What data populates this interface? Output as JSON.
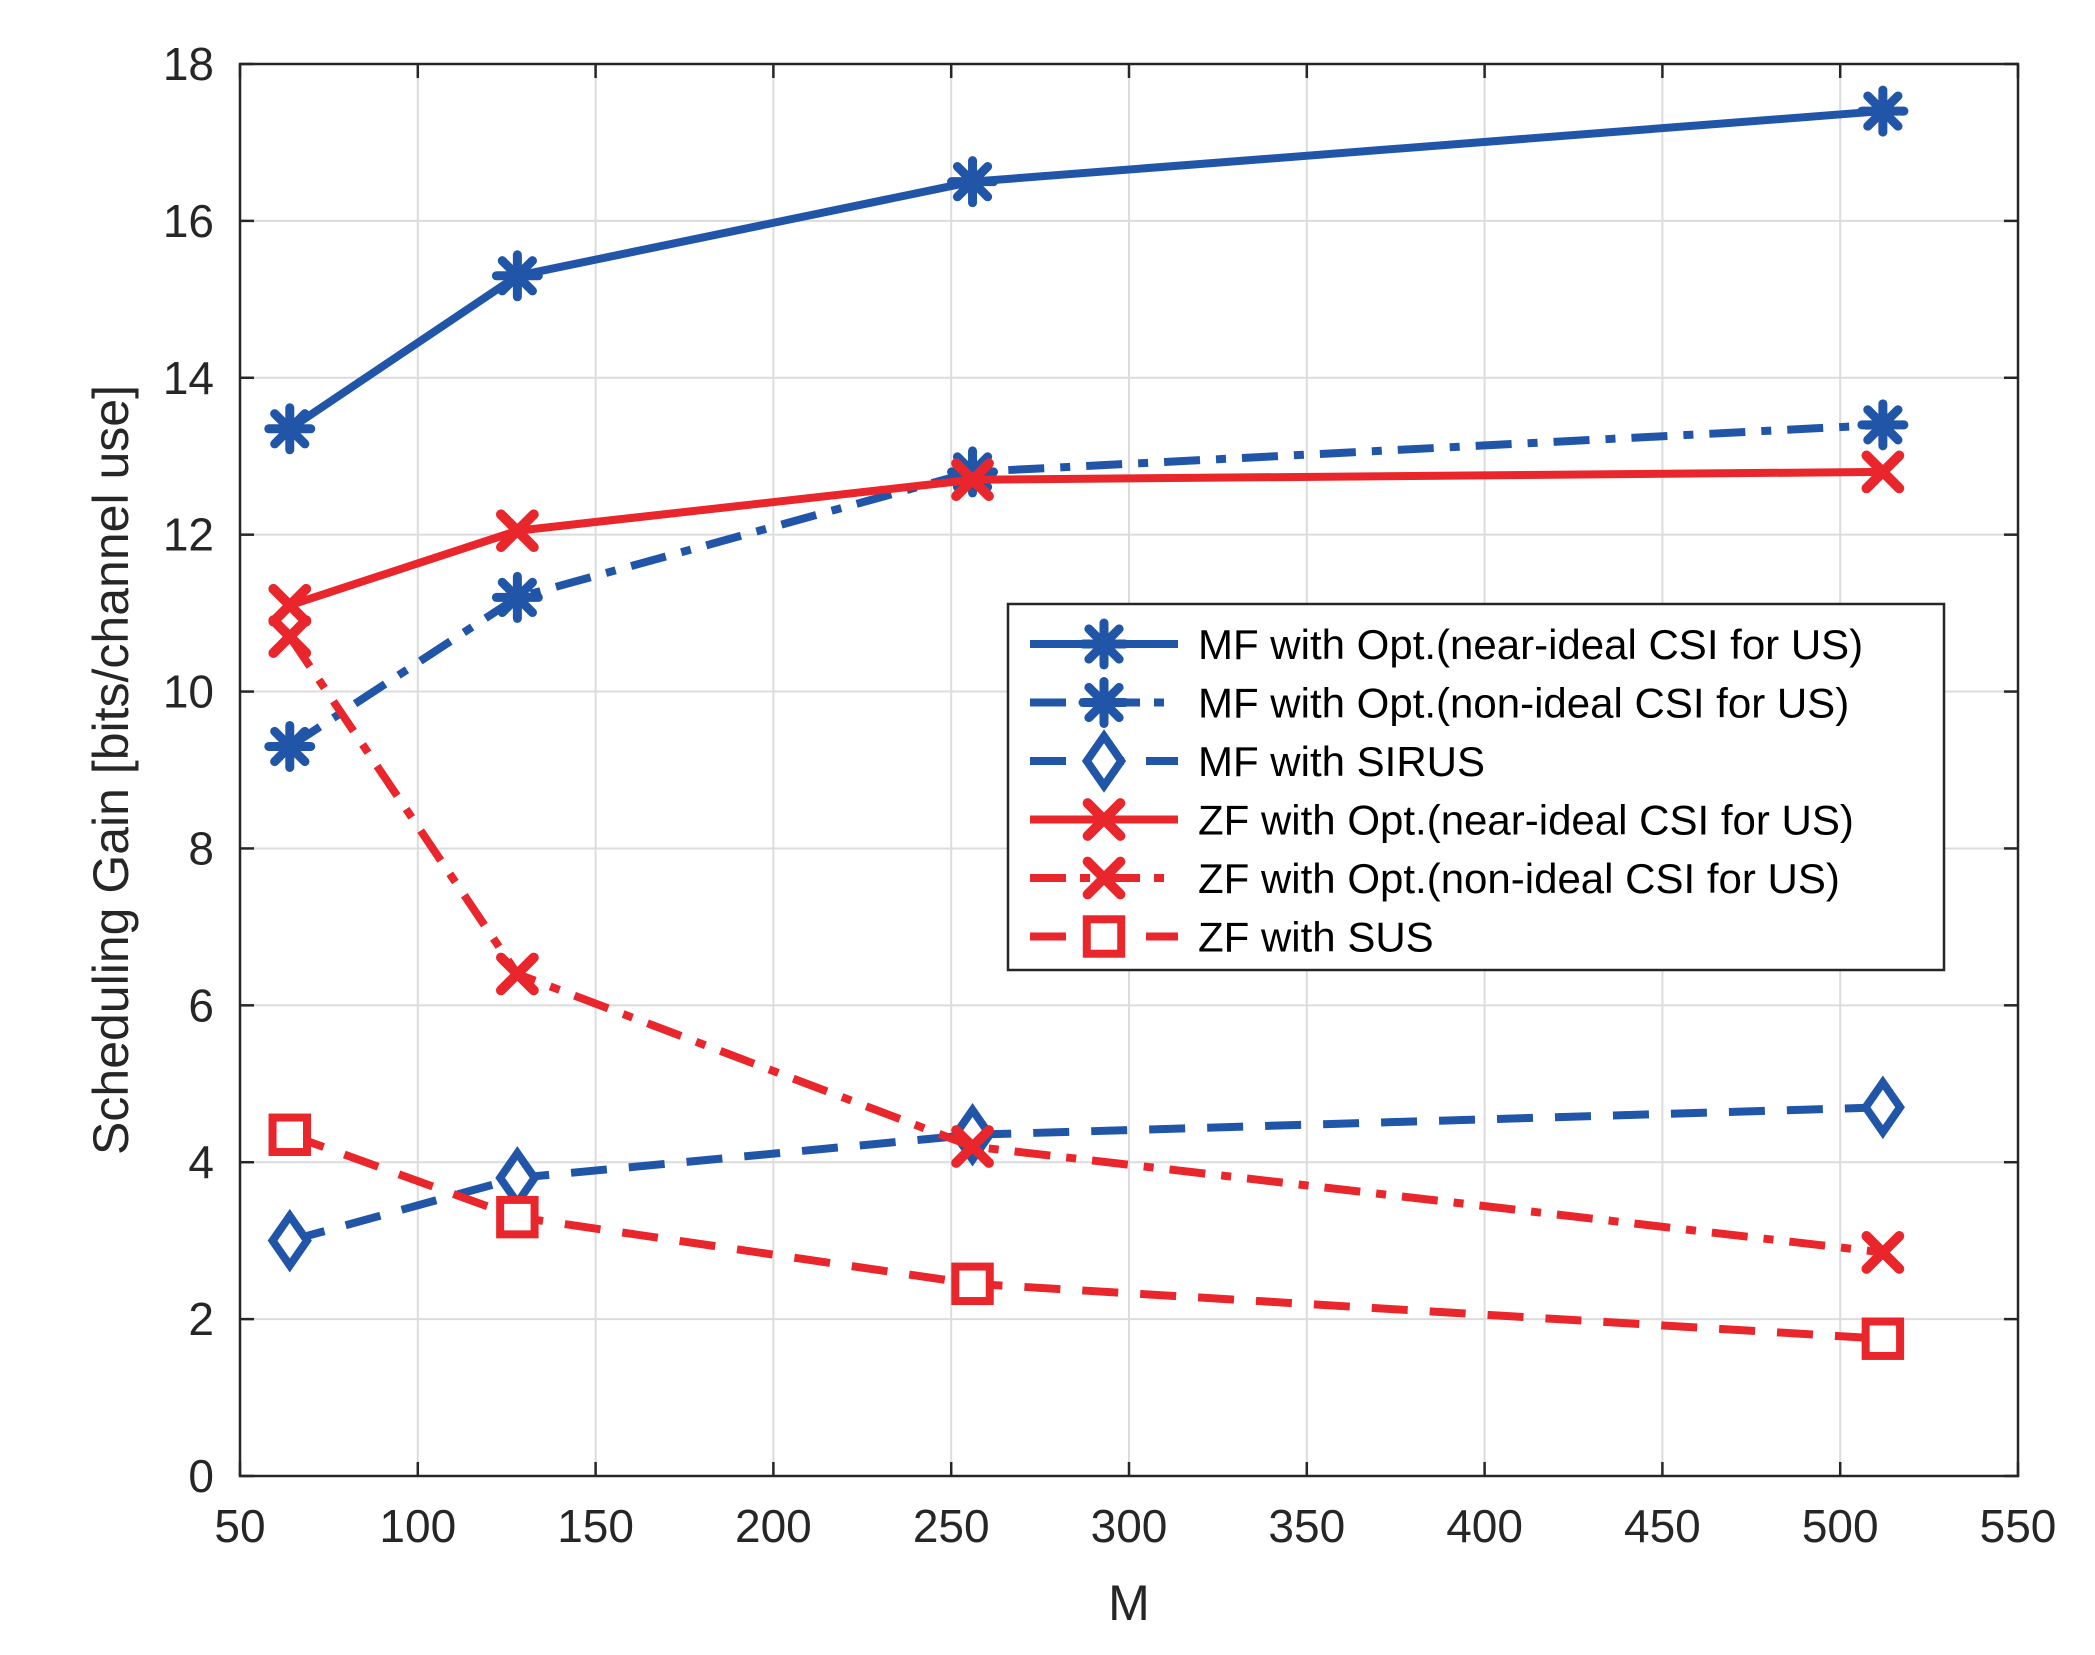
{
  "chart_data": {
    "type": "line",
    "title": "",
    "xlabel": "M",
    "ylabel": "Scheduling Gain [bits/channel use]",
    "xlim": [
      50,
      550
    ],
    "ylim": [
      0,
      18
    ],
    "xticks": [
      50,
      100,
      150,
      200,
      250,
      300,
      350,
      400,
      450,
      500,
      550
    ],
    "yticks": [
      0,
      2,
      4,
      6,
      8,
      10,
      12,
      14,
      16,
      18
    ],
    "grid": true,
    "legend_position": "center-right",
    "x": [
      64,
      128,
      256,
      512
    ],
    "series": [
      {
        "name": "MF with Opt.(near-ideal CSI for US)",
        "color": "#2155a8",
        "dash": "solid",
        "marker": "asterisk",
        "values": [
          13.35,
          15.3,
          16.5,
          17.4
        ]
      },
      {
        "name": "MF with Opt.(non-ideal CSI for US)",
        "color": "#2155a8",
        "dash": "dashdot",
        "marker": "asterisk",
        "values": [
          9.3,
          11.2,
          12.8,
          13.4
        ]
      },
      {
        "name": "MF with SIRUS",
        "color": "#2155a8",
        "dash": "dashed",
        "marker": "diamond",
        "values": [
          3.0,
          3.8,
          4.35,
          4.7
        ]
      },
      {
        "name": "ZF with Opt.(near-ideal CSI for US)",
        "color": "#e8262b",
        "dash": "solid",
        "marker": "x",
        "values": [
          11.1,
          12.05,
          12.7,
          12.8
        ]
      },
      {
        "name": "ZF with Opt.(non-ideal CSI for US)",
        "color": "#e8262b",
        "dash": "dashdot",
        "marker": "x",
        "values": [
          10.7,
          6.4,
          4.2,
          2.85
        ]
      },
      {
        "name": "ZF with SUS",
        "color": "#e8262b",
        "dash": "dashed",
        "marker": "square",
        "values": [
          4.35,
          3.3,
          2.45,
          1.75
        ]
      }
    ]
  }
}
